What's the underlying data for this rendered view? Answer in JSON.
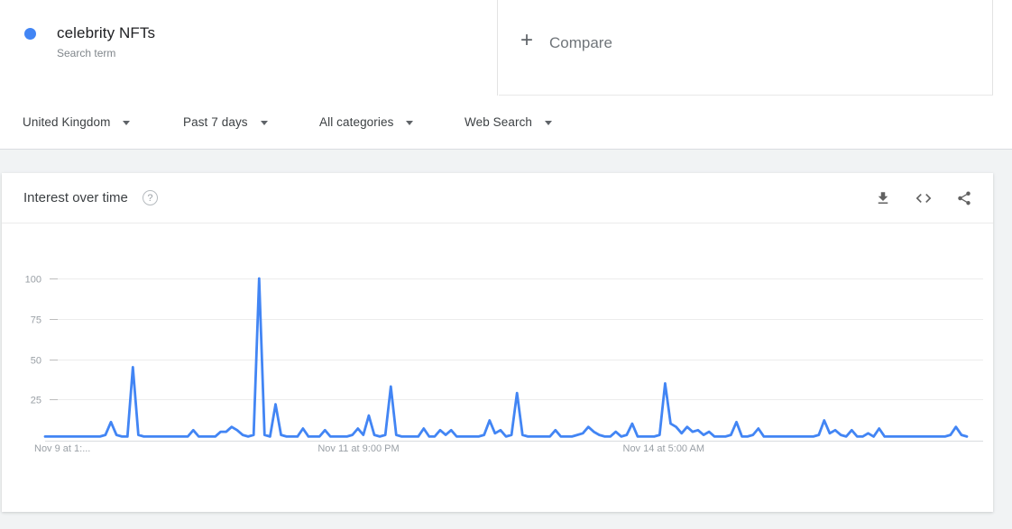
{
  "header": {
    "term": {
      "label": "celebrity NFTs",
      "sublabel": "Search term",
      "dot_color": "#4285f4"
    },
    "compare": {
      "plus": "+",
      "label": "Compare"
    }
  },
  "filters": [
    {
      "label": "United Kingdom"
    },
    {
      "label": "Past 7 days"
    },
    {
      "label": "All categories"
    },
    {
      "label": "Web Search"
    }
  ],
  "widget": {
    "title": "Interest over time",
    "help_icon": "?",
    "icons": [
      "download-icon",
      "embed-icon",
      "share-icon"
    ]
  },
  "colors": {
    "accent": "#4285f4",
    "axis_label": "#9aa0a6",
    "gridline": "#ececec",
    "tick_dash": "#bdbdbd",
    "axis_line": "#dadce0"
  },
  "chart_data": {
    "type": "line",
    "title": "Interest over time",
    "x_unit": "hourly, past 7 days",
    "ylim": [
      0,
      100
    ],
    "y_ticks": [
      25,
      50,
      75,
      100
    ],
    "grid": true,
    "legend_position": "none",
    "x_labels": [
      {
        "text": "Nov 9 at 1:...",
        "frac": 0.0,
        "align": "start"
      },
      {
        "text": "Nov 11 at 9:00 PM",
        "frac": 0.34,
        "align": "middle"
      },
      {
        "text": "Nov 14 at 5:00 AM",
        "frac": 0.671,
        "align": "middle"
      }
    ],
    "series": [
      {
        "name": "celebrity NFTs",
        "color": "#4285f4",
        "values": [
          2,
          2,
          2,
          2,
          2,
          2,
          2,
          2,
          2,
          2,
          2,
          3,
          11,
          3,
          2,
          2,
          45,
          3,
          2,
          2,
          2,
          2,
          2,
          2,
          2,
          2,
          2,
          6,
          2,
          2,
          2,
          2,
          5,
          5,
          8,
          6,
          3,
          2,
          3,
          100,
          3,
          2,
          22,
          3,
          2,
          2,
          2,
          7,
          2,
          2,
          2,
          6,
          2,
          2,
          2,
          2,
          3,
          7,
          3,
          15,
          3,
          2,
          3,
          33,
          3,
          2,
          2,
          2,
          2,
          7,
          2,
          2,
          6,
          3,
          6,
          2,
          2,
          2,
          2,
          2,
          3,
          12,
          4,
          6,
          2,
          3,
          29,
          3,
          2,
          2,
          2,
          2,
          2,
          6,
          2,
          2,
          2,
          3,
          4,
          8,
          5,
          3,
          2,
          2,
          5,
          2,
          3,
          10,
          2,
          2,
          2,
          2,
          3,
          35,
          10,
          8,
          4,
          8,
          5,
          6,
          3,
          5,
          2,
          2,
          2,
          3,
          11,
          2,
          2,
          3,
          7,
          2,
          2,
          2,
          2,
          2,
          2,
          2,
          2,
          2,
          2,
          3,
          12,
          4,
          6,
          3,
          2,
          6,
          2,
          2,
          4,
          2,
          7,
          2,
          2,
          2,
          2,
          2,
          2,
          2,
          2,
          2,
          2,
          2,
          2,
          3,
          8,
          3,
          2
        ]
      }
    ]
  }
}
